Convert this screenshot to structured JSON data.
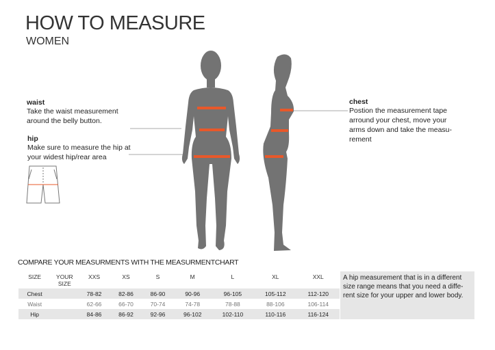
{
  "header": {
    "title": "HOW TO MEASURE",
    "subtitle": "WOMEN"
  },
  "instructions": {
    "waist": {
      "label": "waist",
      "text1": "Take the waist measurement",
      "text2": "around the belly button."
    },
    "hip": {
      "label": "hip",
      "text1": "Make sure to measure the hip at",
      "text2": "your widest hip/rear area"
    },
    "chest": {
      "label": "chest",
      "text1": "Postion the measurement tape",
      "text2": "arround your chest, move your",
      "text3": "arms down and take the measu-",
      "text4": "rement"
    }
  },
  "colors": {
    "figure": "#737373",
    "tape": "#e8582a",
    "row": "#e6e6e6"
  },
  "table": {
    "title": "COMPARE YOUR MEASURMENTS WITH THE MEASURMENTCHART",
    "headers": [
      "SIZE",
      "YOUR SIZE",
      "XXS",
      "XS",
      "S",
      "M",
      "L",
      "XL",
      "XXL"
    ],
    "rows": [
      {
        "label": "Chest",
        "values": [
          "78-82",
          "82-86",
          "86-90",
          "90-96",
          "96-105",
          "105-112",
          "112-120"
        ]
      },
      {
        "label": "Waist",
        "values": [
          "62-66",
          "66-70",
          "70-74",
          "74-78",
          "78-88",
          "88-106",
          "106-114"
        ]
      },
      {
        "label": "Hip",
        "values": [
          "84-86",
          "86-92",
          "92-96",
          "96-102",
          "102-110",
          "110-116",
          "116-124"
        ]
      }
    ]
  },
  "note": "A hip measurement that is in a different size range means that you need a diffe-rent size for your upper and  lower body."
}
